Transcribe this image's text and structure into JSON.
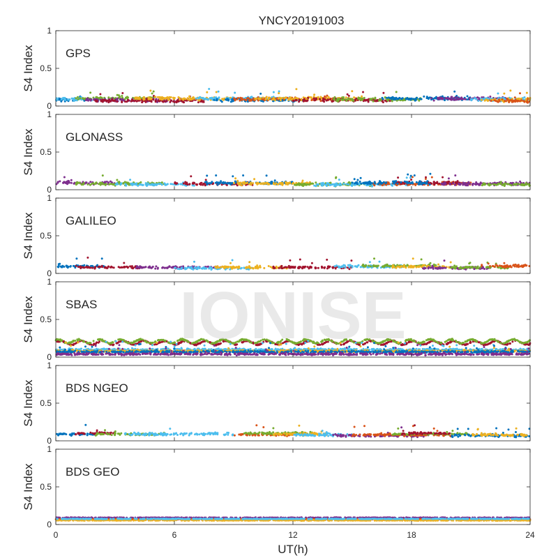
{
  "chart_data": {
    "type": "scatter",
    "title": "YNCY20191003",
    "xlabel": "UT(h)",
    "ylabel": "S4 Index",
    "xlim": [
      0,
      24
    ],
    "ylim": [
      0,
      1
    ],
    "x_ticks": [
      "0",
      "6",
      "12",
      "18",
      "24"
    ],
    "y_ticks": [
      "0",
      "0.5",
      "1"
    ],
    "watermark": "IONISE",
    "series_colors": [
      "#0072BD",
      "#D95319",
      "#EDB120",
      "#7E2F8E",
      "#77AC30",
      "#4DBEEE",
      "#A2142F"
    ],
    "panels": [
      {
        "label": "GPS",
        "typical_s4": {
          "base": 0.08,
          "spread": 0.035
        },
        "segments": [
          {
            "series": 0,
            "x": [
              0.0,
              1.5
            ],
            "y": 0.08
          },
          {
            "series": 5,
            "x": [
              0.0,
              2.5
            ],
            "y": 0.09
          },
          {
            "series": 4,
            "x": [
              1.0,
              5.0
            ],
            "y": 0.1
          },
          {
            "series": 3,
            "x": [
              1.5,
              7.0
            ],
            "y": 0.08
          },
          {
            "series": 6,
            "x": [
              2.0,
              7.5
            ],
            "y": 0.07
          },
          {
            "series": 2,
            "x": [
              4.0,
              9.0
            ],
            "y": 0.1
          },
          {
            "series": 5,
            "x": [
              7.0,
              12.0
            ],
            "y": 0.1
          },
          {
            "series": 0,
            "x": [
              8.0,
              12.5
            ],
            "y": 0.08
          },
          {
            "series": 1,
            "x": [
              9.0,
              14.0
            ],
            "y": 0.09
          },
          {
            "series": 2,
            "x": [
              10.0,
              15.5
            ],
            "y": 0.1
          },
          {
            "series": 6,
            "x": [
              12.0,
              17.0
            ],
            "y": 0.08
          },
          {
            "series": 4,
            "x": [
              14.0,
              18.5
            ],
            "y": 0.09
          },
          {
            "series": 0,
            "x": [
              16.5,
              21.0
            ],
            "y": 0.1
          },
          {
            "series": 3,
            "x": [
              19.0,
              23.0
            ],
            "y": 0.1
          },
          {
            "series": 5,
            "x": [
              21.0,
              24.0
            ],
            "y": 0.09
          },
          {
            "series": 2,
            "x": [
              21.5,
              24.0
            ],
            "y": 0.08
          },
          {
            "series": 1,
            "x": [
              22.0,
              24.0
            ],
            "y": 0.07
          }
        ]
      },
      {
        "label": "GLONASS",
        "typical_s4": {
          "base": 0.08,
          "spread": 0.03
        },
        "segments": [
          {
            "series": 3,
            "x": [
              0.0,
              3.0
            ],
            "y": 0.09
          },
          {
            "series": 4,
            "x": [
              1.0,
              5.5
            ],
            "y": 0.08
          },
          {
            "series": 5,
            "x": [
              3.0,
              7.0
            ],
            "y": 0.07
          },
          {
            "series": 6,
            "x": [
              6.0,
              10.0
            ],
            "y": 0.08
          },
          {
            "series": 0,
            "x": [
              7.5,
              12.0
            ],
            "y": 0.09
          },
          {
            "series": 2,
            "x": [
              9.0,
              13.0
            ],
            "y": 0.08
          },
          {
            "series": 4,
            "x": [
              12.0,
              16.0
            ],
            "y": 0.07
          },
          {
            "series": 5,
            "x": [
              13.0,
              18.0
            ],
            "y": 0.07
          },
          {
            "series": 1,
            "x": [
              16.0,
              21.0
            ],
            "y": 0.08
          },
          {
            "series": 6,
            "x": [
              17.0,
              20.5
            ],
            "y": 0.09
          },
          {
            "series": 3,
            "x": [
              19.5,
              24.0
            ],
            "y": 0.08
          },
          {
            "series": 4,
            "x": [
              21.5,
              24.0
            ],
            "y": 0.07
          },
          {
            "series": 0,
            "x": [
              15.0,
              19.0
            ],
            "y": 0.09
          }
        ]
      },
      {
        "label": "GALILEO",
        "typical_s4": {
          "base": 0.08,
          "spread": 0.025
        },
        "segments": [
          {
            "series": 0,
            "x": [
              0.0,
              2.5
            ],
            "y": 0.09
          },
          {
            "series": 6,
            "x": [
              1.0,
              4.5
            ],
            "y": 0.08
          },
          {
            "series": 3,
            "x": [
              4.0,
              8.5
            ],
            "y": 0.08
          },
          {
            "series": 5,
            "x": [
              6.0,
              10.0
            ],
            "y": 0.07
          },
          {
            "series": 2,
            "x": [
              8.0,
              12.0
            ],
            "y": 0.08
          },
          {
            "series": 6,
            "x": [
              11.0,
              15.0
            ],
            "y": 0.08
          },
          {
            "series": 5,
            "x": [
              14.0,
              17.5
            ],
            "y": 0.09
          },
          {
            "series": 4,
            "x": [
              15.5,
              19.5
            ],
            "y": 0.1
          },
          {
            "series": 2,
            "x": [
              17.0,
              20.0
            ],
            "y": 0.09
          },
          {
            "series": 3,
            "x": [
              18.5,
              22.0
            ],
            "y": 0.07
          },
          {
            "series": 4,
            "x": [
              20.0,
              23.0
            ],
            "y": 0.08
          },
          {
            "series": 1,
            "x": [
              21.5,
              24.0
            ],
            "y": 0.1
          }
        ]
      },
      {
        "label": "SBAS",
        "typical_s4": {
          "base": 0.12,
          "spread": 0.02
        },
        "segments": [
          {
            "series": 6,
            "x": [
              0.0,
              24.0
            ],
            "y": 0.19
          },
          {
            "series": 4,
            "x": [
              0.0,
              24.0
            ],
            "y": 0.21
          },
          {
            "series": 5,
            "x": [
              0.0,
              24.0
            ],
            "y": 0.1
          },
          {
            "series": 2,
            "x": [
              0.0,
              24.0
            ],
            "y": 0.08
          },
          {
            "series": 0,
            "x": [
              0.0,
              24.0
            ],
            "y": 0.07
          },
          {
            "series": 3,
            "x": [
              0.0,
              24.0
            ],
            "y": 0.04
          }
        ]
      },
      {
        "label": "BDS NGEO",
        "typical_s4": {
          "base": 0.08,
          "spread": 0.025
        },
        "segments": [
          {
            "series": 0,
            "x": [
              0.0,
              2.0
            ],
            "y": 0.09
          },
          {
            "series": 6,
            "x": [
              1.0,
              3.0
            ],
            "y": 0.1
          },
          {
            "series": 4,
            "x": [
              2.0,
              5.5
            ],
            "y": 0.09
          },
          {
            "series": 5,
            "x": [
              3.5,
              9.0
            ],
            "y": 0.09
          },
          {
            "series": 1,
            "x": [
              9.0,
              12.0
            ],
            "y": 0.08
          },
          {
            "series": 4,
            "x": [
              9.5,
              13.0
            ],
            "y": 0.1
          },
          {
            "series": 2,
            "x": [
              11.0,
              14.0
            ],
            "y": 0.09
          },
          {
            "series": 5,
            "x": [
              12.0,
              15.0
            ],
            "y": 0.08
          },
          {
            "series": 3,
            "x": [
              14.0,
              19.0
            ],
            "y": 0.07
          },
          {
            "series": 1,
            "x": [
              15.0,
              20.0
            ],
            "y": 0.08
          },
          {
            "series": 4,
            "x": [
              17.0,
              21.0
            ],
            "y": 0.09
          },
          {
            "series": 6,
            "x": [
              17.5,
              20.0
            ],
            "y": 0.1
          },
          {
            "series": 0,
            "x": [
              20.0,
              24.0
            ],
            "y": 0.07
          },
          {
            "series": 2,
            "x": [
              21.0,
              24.0
            ],
            "y": 0.08
          }
        ]
      },
      {
        "label": "BDS GEO",
        "typical_s4": {
          "base": 0.07,
          "spread": 0.006
        },
        "segments": [
          {
            "series": 3,
            "x": [
              0.0,
              24.0
            ],
            "y": 0.09
          },
          {
            "series": 1,
            "x": [
              0.0,
              24.0
            ],
            "y": 0.07
          },
          {
            "series": 2,
            "x": [
              0.0,
              24.0
            ],
            "y": 0.055
          },
          {
            "series": 5,
            "x": [
              0.0,
              24.0
            ],
            "y": 0.075
          }
        ]
      }
    ]
  }
}
